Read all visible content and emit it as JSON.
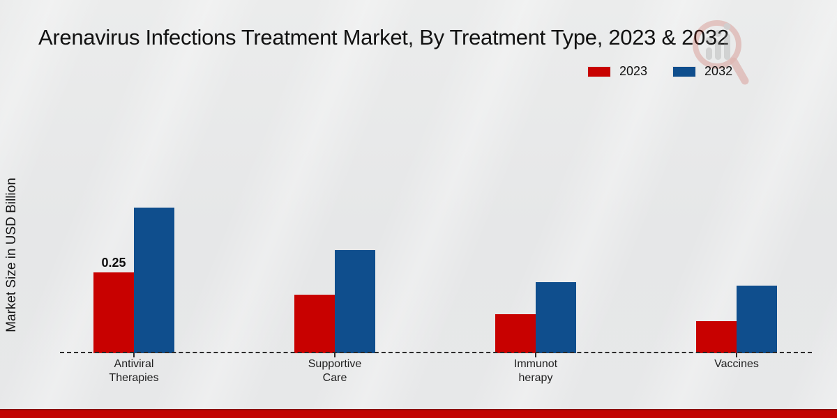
{
  "title": "Arenavirus Infections Treatment Market, By Treatment Type, 2023 & 2032",
  "ylabel": "Market Size in USD Billion",
  "legend": {
    "position": "top-right",
    "items": [
      {
        "label": "2023",
        "color": "#c80100"
      },
      {
        "label": "2032",
        "color": "#0f4e8d"
      }
    ]
  },
  "watermark_icon": "magnifier-bar-chart-logo",
  "colors": {
    "series_2023": "#c80100",
    "series_2032": "#0f4e8d",
    "baseline_dash": "#2b2b2b",
    "footer_strip": "#c10404",
    "background": "#e7e8e9"
  },
  "chart_data": {
    "type": "bar",
    "title": "Arenavirus Infections Treatment Market, By Treatment Type, 2023 & 2032",
    "xlabel": "",
    "ylabel": "Market Size in USD Billion",
    "categories": [
      "Antiviral Therapies",
      "Supportive Care",
      "Immunotherapy",
      "Vaccines"
    ],
    "category_label_lines": [
      [
        "Antiviral",
        "Therapies"
      ],
      [
        "Supportive",
        "Care"
      ],
      [
        "Immunot",
        "herapy"
      ],
      [
        "Vaccines"
      ]
    ],
    "series": [
      {
        "name": "2023",
        "color": "#c80100",
        "values": [
          0.25,
          0.18,
          0.12,
          0.1
        ]
      },
      {
        "name": "2032",
        "color": "#0f4e8d",
        "values": [
          0.45,
          0.32,
          0.22,
          0.21
        ]
      }
    ],
    "data_labels": [
      "0.25",
      null,
      null,
      null
    ],
    "ylim": [
      0,
      0.5
    ],
    "grid": false,
    "axis_style": "dashed-baseline-only",
    "legend_position": "top-right"
  }
}
